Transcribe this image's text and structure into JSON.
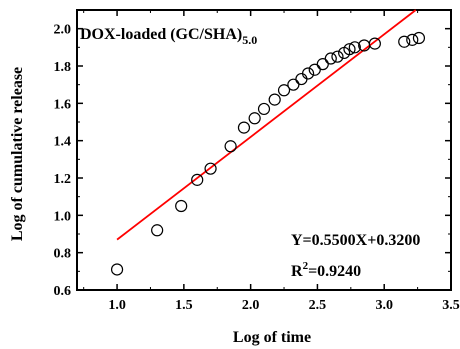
{
  "chart_data": {
    "type": "scatter",
    "title_main": "DOX-loaded (GC/SHA)",
    "title_sub": "5.0",
    "xlabel": "Log of time",
    "ylabel": "Log of cumulative release",
    "xlim": [
      0.7,
      3.5
    ],
    "ylim": [
      0.6,
      2.1
    ],
    "x_ticks": [
      "1.0",
      "1.5",
      "2.0",
      "2.5",
      "3.0",
      "3.5"
    ],
    "y_ticks": [
      "0.6",
      "0.8",
      "1.0",
      "1.2",
      "1.4",
      "1.6",
      "1.8",
      "2.0"
    ],
    "grid": false,
    "series": [
      {
        "marker": "open-circle",
        "color": "#000000",
        "x": [
          1.0,
          1.3,
          1.48,
          1.6,
          1.7,
          1.85,
          1.95,
          2.03,
          2.1,
          2.18,
          2.25,
          2.32,
          2.38,
          2.43,
          2.48,
          2.54,
          2.6,
          2.65,
          2.7,
          2.74,
          2.78,
          2.85,
          2.93,
          3.15,
          3.21,
          3.26
        ],
        "y": [
          0.71,
          0.92,
          1.05,
          1.19,
          1.25,
          1.37,
          1.47,
          1.52,
          1.57,
          1.62,
          1.67,
          1.7,
          1.73,
          1.76,
          1.78,
          1.81,
          1.84,
          1.85,
          1.87,
          1.89,
          1.9,
          1.91,
          1.92,
          1.93,
          1.94,
          1.95
        ]
      }
    ],
    "fit_line": {
      "color": "#ff0000",
      "slope": 0.55,
      "intercept": 0.32,
      "x_start": 1.0
    },
    "equation_text": "Y=0.5500X+0.3200",
    "r2_label": "R",
    "r2_sup": "2",
    "r2_value": "=0.9240"
  }
}
